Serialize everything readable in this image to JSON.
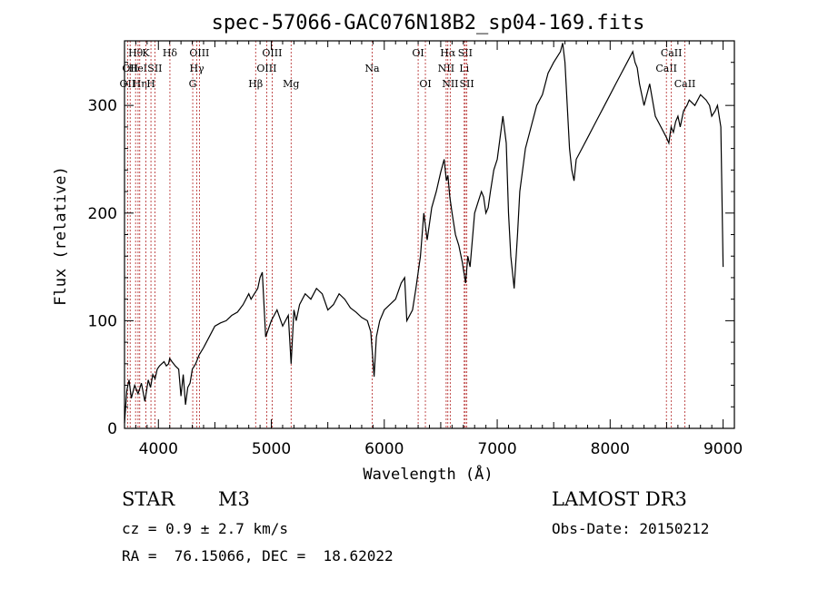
{
  "chart_data": {
    "type": "line",
    "title": "spec-57066-GAC076N18B2_sp04-169.fits",
    "xlabel": "Wavelength (Å)",
    "ylabel": "Flux (relative)",
    "xlim": [
      3700,
      9100
    ],
    "ylim": [
      0,
      360
    ],
    "xticks": [
      4000,
      5000,
      6000,
      7000,
      8000,
      9000
    ],
    "yticks": [
      0,
      100,
      200,
      300
    ],
    "series": [
      {
        "name": "spectrum",
        "x": [
          3700,
          3720,
          3740,
          3760,
          3790,
          3820,
          3850,
          3880,
          3910,
          3930,
          3950,
          3970,
          3990,
          4010,
          4030,
          4050,
          4070,
          4090,
          4100,
          4120,
          4150,
          4180,
          4200,
          4220,
          4240,
          4260,
          4280,
          4300,
          4330,
          4360,
          4400,
          4450,
          4500,
          4550,
          4600,
          4650,
          4700,
          4750,
          4800,
          4820,
          4850,
          4880,
          4900,
          4920,
          4950,
          5000,
          5050,
          5100,
          5150,
          5175,
          5200,
          5220,
          5250,
          5300,
          5350,
          5400,
          5450,
          5500,
          5550,
          5600,
          5650,
          5700,
          5750,
          5800,
          5850,
          5880,
          5895,
          5910,
          5930,
          5960,
          6000,
          6050,
          6100,
          6150,
          6180,
          6200,
          6250,
          6280,
          6300,
          6320,
          6350,
          6380,
          6420,
          6460,
          6500,
          6530,
          6550,
          6563,
          6580,
          6600,
          6630,
          6660,
          6690,
          6720,
          6740,
          6760,
          6800,
          6830,
          6860,
          6880,
          6900,
          6920,
          6940,
          6970,
          7000,
          7050,
          7080,
          7100,
          7120,
          7150,
          7180,
          7200,
          7250,
          7300,
          7350,
          7400,
          7450,
          7500,
          7530,
          7560,
          7580,
          7600,
          7620,
          7640,
          7660,
          7680,
          7700,
          7750,
          7800,
          7850,
          7900,
          7950,
          8000,
          8050,
          8100,
          8150,
          8200,
          8220,
          8240,
          8260,
          8300,
          8350,
          8400,
          8450,
          8500,
          8520,
          8540,
          8560,
          8580,
          8600,
          8620,
          8650,
          8680,
          8700,
          8750,
          8800,
          8850,
          8880,
          8900,
          8930,
          8950,
          8980,
          9000
        ],
        "y": [
          5,
          35,
          45,
          28,
          40,
          32,
          42,
          25,
          45,
          38,
          50,
          46,
          55,
          58,
          60,
          62,
          58,
          60,
          65,
          62,
          58,
          55,
          30,
          50,
          22,
          38,
          42,
          55,
          60,
          68,
          75,
          85,
          95,
          98,
          100,
          105,
          108,
          115,
          125,
          120,
          125,
          130,
          140,
          145,
          85,
          100,
          110,
          95,
          105,
          60,
          110,
          100,
          115,
          125,
          120,
          130,
          125,
          110,
          115,
          125,
          120,
          112,
          108,
          103,
          100,
          90,
          70,
          48,
          85,
          100,
          110,
          115,
          120,
          135,
          140,
          100,
          110,
          130,
          145,
          160,
          200,
          175,
          205,
          220,
          238,
          250,
          230,
          235,
          215,
          200,
          180,
          170,
          155,
          135,
          160,
          150,
          200,
          210,
          220,
          215,
          200,
          205,
          220,
          240,
          250,
          290,
          265,
          200,
          160,
          130,
          180,
          220,
          260,
          280,
          300,
          310,
          330,
          340,
          345,
          350,
          358,
          340,
          300,
          260,
          240,
          230,
          250,
          260,
          270,
          280,
          290,
          300,
          310,
          320,
          330,
          340,
          350,
          340,
          335,
          320,
          300,
          320,
          290,
          280,
          270,
          265,
          280,
          275,
          285,
          290,
          280,
          295,
          300,
          305,
          300,
          310,
          305,
          300,
          290,
          295,
          300,
          280,
          150
        ]
      }
    ],
    "line_markers": [
      {
        "wavelength": 3727,
        "label": "OII",
        "row": 3
      },
      {
        "wavelength": 3750,
        "label": "OII",
        "row": 2
      },
      {
        "wavelength": 3798,
        "label": "Hθ",
        "row": 1
      },
      {
        "wavelength": 3820,
        "label": "HeI",
        "row": 2
      },
      {
        "wavelength": 3835,
        "label": "Hη",
        "row": 3
      },
      {
        "wavelength": 3889,
        "label": "K",
        "row": 1
      },
      {
        "wavelength": 3934,
        "label": "H",
        "row": 3
      },
      {
        "wavelength": 3969,
        "label": "SII",
        "row": 2
      },
      {
        "wavelength": 4102,
        "label": "Hδ",
        "row": 1
      },
      {
        "wavelength": 4304,
        "label": "G",
        "row": 3
      },
      {
        "wavelength": 4340,
        "label": "Hγ",
        "row": 2
      },
      {
        "wavelength": 4363,
        "label": "OIII",
        "row": 1
      },
      {
        "wavelength": 4861,
        "label": "Hβ",
        "row": 3
      },
      {
        "wavelength": 4959,
        "label": "OIII",
        "row": 2
      },
      {
        "wavelength": 5007,
        "label": "OIII",
        "row": 1
      },
      {
        "wavelength": 5175,
        "label": "Mg",
        "row": 3
      },
      {
        "wavelength": 5893,
        "label": "Na",
        "row": 2
      },
      {
        "wavelength": 6300,
        "label": "OI",
        "row": 1
      },
      {
        "wavelength": 6364,
        "label": "OI",
        "row": 3
      },
      {
        "wavelength": 6548,
        "label": "NII",
        "row": 2
      },
      {
        "wavelength": 6563,
        "label": "Hα",
        "row": 1
      },
      {
        "wavelength": 6584,
        "label": "NII",
        "row": 3
      },
      {
        "wavelength": 6708,
        "label": "Li",
        "row": 2
      },
      {
        "wavelength": 6717,
        "label": "SII",
        "row": 1
      },
      {
        "wavelength": 6731,
        "label": "SII",
        "row": 3
      },
      {
        "wavelength": 8498,
        "label": "CaII",
        "row": 2
      },
      {
        "wavelength": 8542,
        "label": "CaII",
        "row": 1
      },
      {
        "wavelength": 8662,
        "label": "CaII",
        "row": 3
      }
    ],
    "grid": false,
    "line_color": "#000000",
    "marker_color": "#b22222"
  },
  "info": {
    "class": "STAR",
    "subclass": "M3",
    "survey": "LAMOST DR3",
    "cz": "cz = 0.9 ± 2.7 km/s",
    "obs_date": "Obs-Date: 20150212",
    "coords": "RA =  76.15066, DEC =  18.62022"
  }
}
